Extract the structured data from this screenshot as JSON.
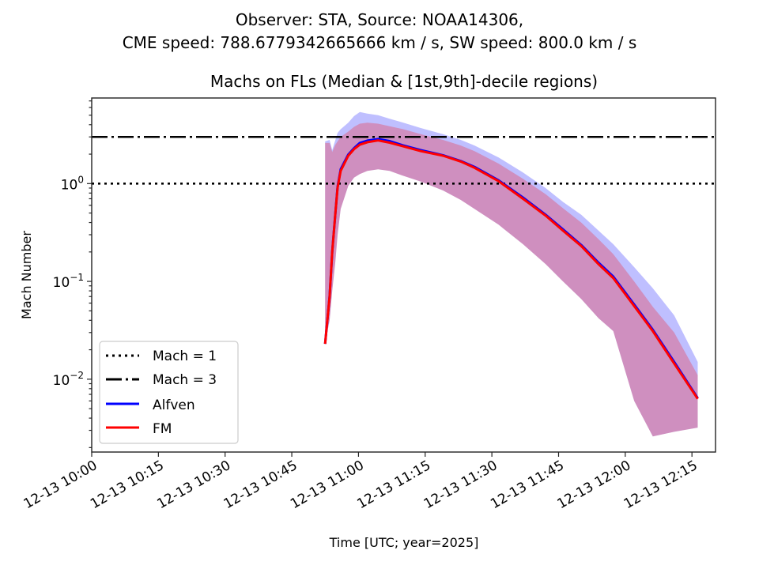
{
  "chart_data": {
    "type": "line",
    "suptitle_lines": [
      "Observer: STA, Source: NOAA14306,",
      "CME speed: 788.6779342665666 km / s, SW speed: 800.0 km / s"
    ],
    "title": "Machs on FLs (Median & [1st,9th]-decile regions)",
    "xlabel": "Time [UTC; year=2025]",
    "ylabel": "Mach Number",
    "yscale": "log",
    "ylim": [
      0.0018,
      7.5
    ],
    "xlim_minutes_after_1000": [
      0,
      140.3
    ],
    "x_reference": "12-13 10:00",
    "x_ticks": [
      {
        "minutes": 0,
        "label": "12-13 10:00"
      },
      {
        "minutes": 15,
        "label": "12-13 10:15"
      },
      {
        "minutes": 30,
        "label": "12-13 10:30"
      },
      {
        "minutes": 45,
        "label": "12-13 10:45"
      },
      {
        "minutes": 60,
        "label": "12-13 11:00"
      },
      {
        "minutes": 75,
        "label": "12-13 11:15"
      },
      {
        "minutes": 90,
        "label": "12-13 11:30"
      },
      {
        "minutes": 105,
        "label": "12-13 11:45"
      },
      {
        "minutes": 120,
        "label": "12-13 12:00"
      },
      {
        "minutes": 135,
        "label": "12-13 12:15"
      }
    ],
    "y_ticks": [
      {
        "value": 0.01,
        "base": "10",
        "exp": "−2"
      },
      {
        "value": 0.1,
        "base": "10",
        "exp": "−1"
      },
      {
        "value": 1,
        "base": "10",
        "exp": "0"
      }
    ],
    "hlines": [
      {
        "name": "Mach = 1",
        "value": 1,
        "style": "dotted",
        "color": "#000000"
      },
      {
        "name": "Mach = 3",
        "value": 3,
        "style": "dashdot",
        "color": "#000000"
      }
    ],
    "x_minutes": [
      52.5,
      53.5,
      54.1,
      54.8,
      55.3,
      56.0,
      57.7,
      59.0,
      60.3,
      62.0,
      64.4,
      67.0,
      70.1,
      74.0,
      79.0,
      83.0,
      86.1,
      91.5,
      97.0,
      102.1,
      106.0,
      110.1,
      114.0,
      117.3,
      122.0,
      126.2,
      131.0,
      136.3
    ],
    "series": [
      {
        "name": "Alfven",
        "color": "#0000ff",
        "median": [
          0.023,
          0.07,
          0.2,
          0.5,
          0.93,
          1.4,
          1.98,
          2.3,
          2.6,
          2.75,
          2.85,
          2.72,
          2.45,
          2.2,
          1.95,
          1.7,
          1.48,
          1.08,
          0.72,
          0.48,
          0.34,
          0.235,
          0.155,
          0.112,
          0.058,
          0.032,
          0.015,
          0.0064
        ],
        "decile_low": [
          0.023,
          0.04,
          0.08,
          0.16,
          0.3,
          0.55,
          0.95,
          1.15,
          1.25,
          1.35,
          1.4,
          1.35,
          1.2,
          1.05,
          0.85,
          0.68,
          0.55,
          0.38,
          0.24,
          0.15,
          0.1,
          0.066,
          0.042,
          0.031,
          0.006,
          0.0026,
          0.0029,
          0.0032
        ],
        "decile_high": [
          2.7,
          2.8,
          2.2,
          2.8,
          3.3,
          3.6,
          4.2,
          4.9,
          5.4,
          5.2,
          5.0,
          4.6,
          4.2,
          3.7,
          3.2,
          2.8,
          2.45,
          1.85,
          1.3,
          0.9,
          0.65,
          0.48,
          0.33,
          0.24,
          0.14,
          0.085,
          0.045,
          0.015
        ],
        "fill_color": "#0000ff",
        "fill_alpha": 0.25
      },
      {
        "name": "FM",
        "color": "#ff0000",
        "median": [
          0.023,
          0.07,
          0.2,
          0.5,
          0.91,
          1.35,
          1.93,
          2.25,
          2.5,
          2.65,
          2.76,
          2.62,
          2.4,
          2.15,
          1.93,
          1.68,
          1.45,
          1.06,
          0.7,
          0.47,
          0.33,
          0.23,
          0.15,
          0.108,
          0.056,
          0.031,
          0.0145,
          0.0063
        ],
        "decile_low": [
          0.023,
          0.04,
          0.08,
          0.16,
          0.3,
          0.55,
          0.95,
          1.15,
          1.25,
          1.35,
          1.4,
          1.35,
          1.2,
          1.05,
          0.85,
          0.68,
          0.55,
          0.38,
          0.24,
          0.15,
          0.1,
          0.066,
          0.042,
          0.031,
          0.006,
          0.0026,
          0.0029,
          0.0032
        ],
        "decile_high": [
          2.6,
          2.6,
          2.1,
          2.5,
          2.7,
          3.0,
          3.4,
          3.8,
          4.1,
          4.2,
          4.1,
          3.85,
          3.6,
          3.2,
          2.8,
          2.45,
          2.15,
          1.6,
          1.12,
          0.78,
          0.56,
          0.4,
          0.27,
          0.19,
          0.1,
          0.055,
          0.03,
          0.011
        ],
        "fill_color": "#ff0000",
        "fill_alpha": 0.25
      }
    ],
    "legend": {
      "placement": "lower-left",
      "entries": [
        "Mach = 1",
        "Mach = 3",
        "Alfven",
        "FM"
      ]
    },
    "grid": false
  }
}
